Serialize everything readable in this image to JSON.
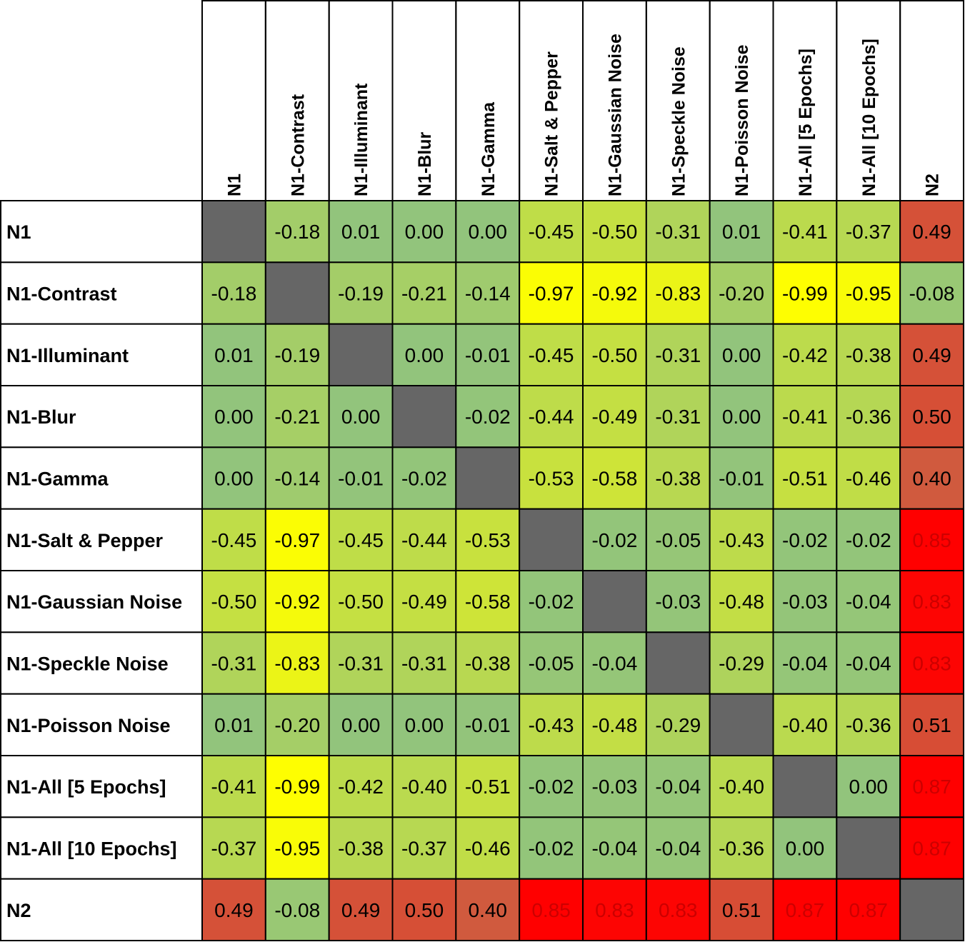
{
  "chart_data": {
    "type": "heatmap",
    "labels": [
      "N1",
      "N1-Contrast",
      "N1-Illuminant",
      "N1-Blur",
      "N1-Gamma",
      "N1-Salt & Pepper",
      "N1-Gaussian Noise",
      "N1-Speckle Noise",
      "N1-Poisson Noise",
      "N1-All [5 Epochs]",
      "N1-All [10 Epochs]",
      "N2"
    ],
    "matrix": [
      [
        "",
        "-0.18",
        "0.01",
        "0.00",
        "0.00",
        "-0.45",
        "-0.50",
        "-0.31",
        "0.01",
        "-0.41",
        "-0.37",
        "0.49"
      ],
      [
        "-0.18",
        "",
        "-0.19",
        "-0.21",
        "-0.14",
        "-0.97",
        "-0.92",
        "-0.83",
        "-0.20",
        "-0.99",
        "-0.95",
        "-0.08"
      ],
      [
        "0.01",
        "-0.19",
        "",
        "0.00",
        "-0.01",
        "-0.45",
        "-0.50",
        "-0.31",
        "0.00",
        "-0.42",
        "-0.38",
        "0.49"
      ],
      [
        "0.00",
        "-0.21",
        "0.00",
        "",
        "-0.02",
        "-0.44",
        "-0.49",
        "-0.31",
        "0.00",
        "-0.41",
        "-0.36",
        "0.50"
      ],
      [
        "0.00",
        "-0.14",
        "-0.01",
        "-0.02",
        "",
        "-0.53",
        "-0.58",
        "-0.38",
        "-0.01",
        "-0.51",
        "-0.46",
        "0.40"
      ],
      [
        "-0.45",
        "-0.97",
        "-0.45",
        "-0.44",
        "-0.53",
        "",
        "-0.02",
        "-0.05",
        "-0.43",
        "-0.02",
        "-0.02",
        "0.85"
      ],
      [
        "-0.50",
        "-0.92",
        "-0.50",
        "-0.49",
        "-0.58",
        "-0.02",
        "",
        "-0.03",
        "-0.48",
        "-0.03",
        "-0.04",
        "0.83"
      ],
      [
        "-0.31",
        "-0.83",
        "-0.31",
        "-0.31",
        "-0.38",
        "-0.05",
        "-0.04",
        "",
        "-0.29",
        "-0.04",
        "-0.04",
        "0.83"
      ],
      [
        "0.01",
        "-0.20",
        "0.00",
        "0.00",
        "-0.01",
        "-0.43",
        "-0.48",
        "-0.29",
        "",
        "-0.40",
        "-0.36",
        "0.51"
      ],
      [
        "-0.41",
        "-0.99",
        "-0.42",
        "-0.40",
        "-0.51",
        "-0.02",
        "-0.03",
        "-0.04",
        "-0.40",
        "",
        "0.00",
        "0.87"
      ],
      [
        "-0.37",
        "-0.95",
        "-0.38",
        "-0.37",
        "-0.46",
        "-0.02",
        "-0.04",
        "-0.04",
        "-0.36",
        "0.00",
        "",
        "0.87"
      ],
      [
        "0.49",
        "-0.08",
        "0.49",
        "0.50",
        "0.40",
        "0.85",
        "0.83",
        "0.83",
        "0.51",
        "0.87",
        "0.87",
        ""
      ]
    ],
    "colors": {
      "diagonal": "#666666",
      "negative_low": "#92c47c",
      "negative_high": "#ffff00",
      "positive_low": "#d05a3e",
      "positive_high": "#ff0000",
      "positive_text": "#000000",
      "strong_positive_text": "#cc0000",
      "gridline": "#000000"
    }
  }
}
